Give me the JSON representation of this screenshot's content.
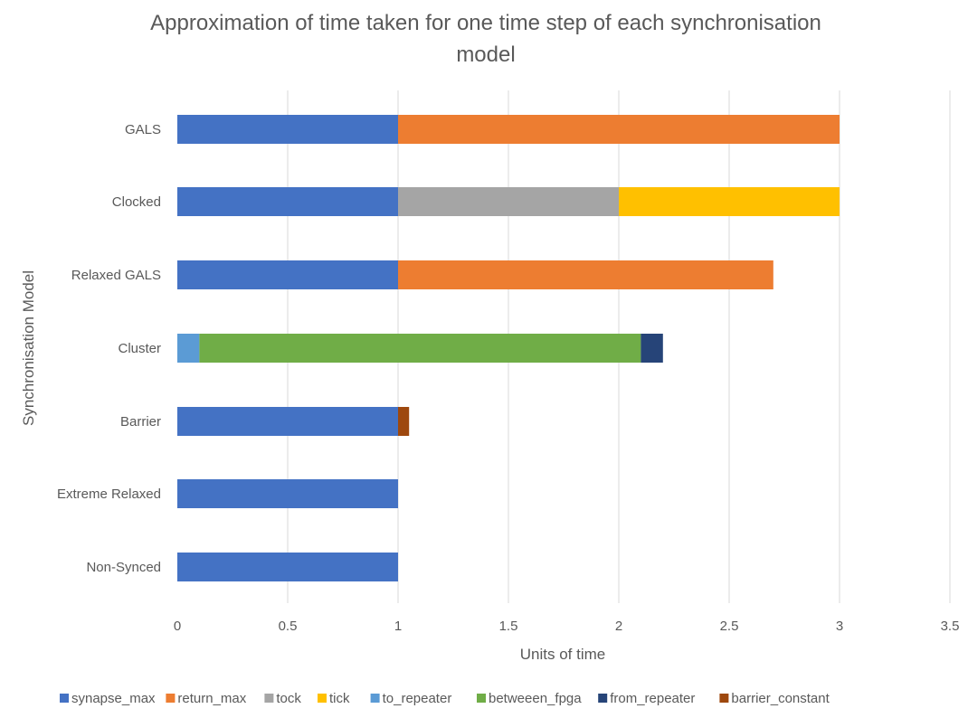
{
  "chart_data": {
    "type": "bar",
    "orientation": "horizontal",
    "stacked": true,
    "title_lines": [
      "Approximation of time taken for one time step of each synchronisation",
      "model"
    ],
    "xlabel": "Units of time",
    "ylabel": "Synchronisation Model",
    "xlim": [
      0,
      3.5
    ],
    "xticks": [
      "0",
      "0.5",
      "1",
      "1.5",
      "2",
      "2.5",
      "3",
      "3.5"
    ],
    "grid": "vertical",
    "legend_position": "bottom",
    "categories": [
      "GALS",
      "Clocked",
      "Relaxed GALS",
      "Cluster",
      "Barrier",
      "Extreme Relaxed",
      "Non-Synced"
    ],
    "series": [
      {
        "name": "synapse_max",
        "color": "#4472c4",
        "values": [
          1,
          1,
          1,
          0,
          1,
          1,
          1
        ]
      },
      {
        "name": "return_max",
        "color": "#ed7d31",
        "values": [
          2,
          0,
          1.7,
          0,
          0,
          0,
          0
        ]
      },
      {
        "name": "tock",
        "color": "#a5a5a5",
        "values": [
          0,
          1,
          0,
          0,
          0,
          0,
          0
        ]
      },
      {
        "name": "tick",
        "color": "#ffc000",
        "values": [
          0,
          1,
          0,
          0,
          0,
          0,
          0
        ]
      },
      {
        "name": "to_repeater",
        "color": "#5b9bd5",
        "values": [
          0,
          0,
          0,
          0.1,
          0,
          0,
          0
        ]
      },
      {
        "name": "betweeen_fpga",
        "color": "#70ad47",
        "values": [
          0,
          0,
          0,
          2,
          0,
          0,
          0
        ]
      },
      {
        "name": "from_repeater",
        "color": "#264478",
        "values": [
          0,
          0,
          0,
          0.1,
          0,
          0,
          0
        ]
      },
      {
        "name": "barrier_constant",
        "color": "#9e480e",
        "values": [
          0,
          0,
          0,
          0,
          0.05,
          0,
          0
        ]
      }
    ]
  }
}
